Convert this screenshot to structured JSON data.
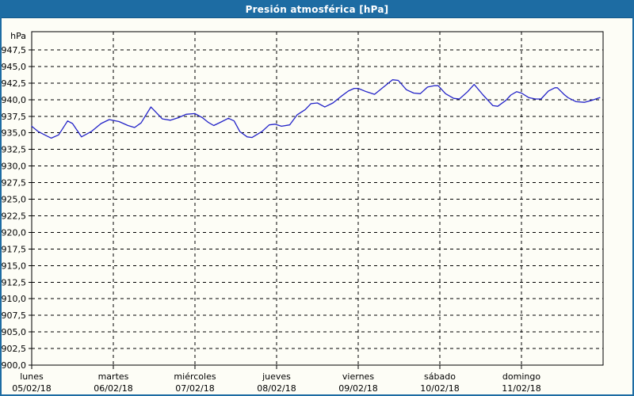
{
  "window": {
    "title": "Presión atmosférica [hPa]"
  },
  "colors": {
    "titlebar_bg": "#1d6ca3",
    "window_border": "#1d6ca3",
    "content_bg": "#fdfdf6",
    "grid": "#000000",
    "text": "#000000",
    "title_text": "#ffffff",
    "series_line": "#2323c8"
  },
  "chart_data": {
    "type": "line",
    "title": "Presión atmosférica [hPa]",
    "grid": "dashed",
    "legend": false,
    "y_axis": {
      "unit_label": "hPa",
      "min": 900,
      "max": 950,
      "tick_step": 2.5,
      "ticks": [
        {
          "label": "947,5",
          "value": 947.5
        },
        {
          "label": "945,0",
          "value": 945.0
        },
        {
          "label": "942,5",
          "value": 942.5
        },
        {
          "label": "940,0",
          "value": 940.0
        },
        {
          "label": "937,5",
          "value": 937.5
        },
        {
          "label": "935,0",
          "value": 935.0
        },
        {
          "label": "932,5",
          "value": 932.5
        },
        {
          "label": "930,0",
          "value": 930.0
        },
        {
          "label": "927,5",
          "value": 927.5
        },
        {
          "label": "925,0",
          "value": 925.0
        },
        {
          "label": "922,5",
          "value": 922.5
        },
        {
          "label": "920,0",
          "value": 920.0
        },
        {
          "label": "917,5",
          "value": 917.5
        },
        {
          "label": "915,0",
          "value": 915.0
        },
        {
          "label": "912,5",
          "value": 912.5
        },
        {
          "label": "910,0",
          "value": 910.0
        },
        {
          "label": "907,5",
          "value": 907.5
        },
        {
          "label": "905,0",
          "value": 905.0
        },
        {
          "label": "902,5",
          "value": 902.5
        },
        {
          "label": "900,0",
          "value": 900.0
        }
      ]
    },
    "x_axis": {
      "days": [
        {
          "name": "lunes",
          "date": "05/02/18"
        },
        {
          "name": "martes",
          "date": "06/02/18"
        },
        {
          "name": "miércoles",
          "date": "07/02/18"
        },
        {
          "name": "jueves",
          "date": "08/02/18"
        },
        {
          "name": "viernes",
          "date": "09/02/18"
        },
        {
          "name": "sábado",
          "date": "10/02/18"
        },
        {
          "name": "domingo",
          "date": "11/02/18"
        }
      ]
    },
    "series": [
      {
        "name": "Presión atmosférica",
        "color": "#2323c8",
        "points": [
          [
            0.0,
            936.0
          ],
          [
            0.08,
            935.2
          ],
          [
            0.19,
            934.5
          ],
          [
            0.24,
            934.2
          ],
          [
            0.33,
            934.7
          ],
          [
            0.44,
            936.8
          ],
          [
            0.5,
            936.4
          ],
          [
            0.61,
            934.4
          ],
          [
            0.73,
            935.2
          ],
          [
            0.85,
            936.4
          ],
          [
            0.95,
            937.0
          ],
          [
            1.07,
            936.7
          ],
          [
            1.18,
            936.1
          ],
          [
            1.26,
            935.8
          ],
          [
            1.34,
            936.5
          ],
          [
            1.46,
            938.9
          ],
          [
            1.53,
            938.0
          ],
          [
            1.6,
            937.1
          ],
          [
            1.7,
            936.9
          ],
          [
            1.8,
            937.3
          ],
          [
            1.89,
            937.8
          ],
          [
            2.0,
            937.9
          ],
          [
            2.09,
            937.3
          ],
          [
            2.16,
            936.6
          ],
          [
            2.23,
            936.1
          ],
          [
            2.33,
            936.7
          ],
          [
            2.41,
            937.2
          ],
          [
            2.48,
            936.8
          ],
          [
            2.55,
            935.2
          ],
          [
            2.64,
            934.4
          ],
          [
            2.7,
            934.3
          ],
          [
            2.82,
            935.2
          ],
          [
            2.91,
            936.2
          ],
          [
            2.98,
            936.3
          ],
          [
            3.06,
            936.0
          ],
          [
            3.16,
            936.2
          ],
          [
            3.25,
            937.7
          ],
          [
            3.35,
            938.5
          ],
          [
            3.42,
            939.4
          ],
          [
            3.5,
            939.5
          ],
          [
            3.59,
            938.9
          ],
          [
            3.69,
            939.5
          ],
          [
            3.79,
            940.5
          ],
          [
            3.88,
            941.3
          ],
          [
            3.95,
            941.7
          ],
          [
            4.0,
            941.7
          ],
          [
            4.1,
            941.2
          ],
          [
            4.2,
            940.8
          ],
          [
            4.3,
            941.8
          ],
          [
            4.42,
            943.0
          ],
          [
            4.49,
            942.9
          ],
          [
            4.59,
            941.5
          ],
          [
            4.68,
            941.0
          ],
          [
            4.76,
            940.9
          ],
          [
            4.85,
            941.9
          ],
          [
            4.93,
            942.1
          ],
          [
            4.98,
            942.1
          ],
          [
            5.07,
            940.9
          ],
          [
            5.17,
            940.2
          ],
          [
            5.24,
            940.1
          ],
          [
            5.34,
            941.2
          ],
          [
            5.42,
            942.3
          ],
          [
            5.53,
            940.7
          ],
          [
            5.65,
            939.1
          ],
          [
            5.71,
            939.0
          ],
          [
            5.81,
            939.9
          ],
          [
            5.87,
            940.7
          ],
          [
            5.94,
            941.2
          ],
          [
            6.0,
            941.0
          ],
          [
            6.09,
            940.3
          ],
          [
            6.17,
            940.1
          ],
          [
            6.24,
            940.1
          ],
          [
            6.33,
            941.3
          ],
          [
            6.41,
            941.8
          ],
          [
            6.44,
            941.8
          ],
          [
            6.52,
            940.8
          ],
          [
            6.57,
            940.3
          ],
          [
            6.67,
            939.7
          ],
          [
            6.77,
            939.6
          ],
          [
            6.86,
            939.9
          ],
          [
            6.96,
            940.3
          ]
        ]
      }
    ]
  }
}
